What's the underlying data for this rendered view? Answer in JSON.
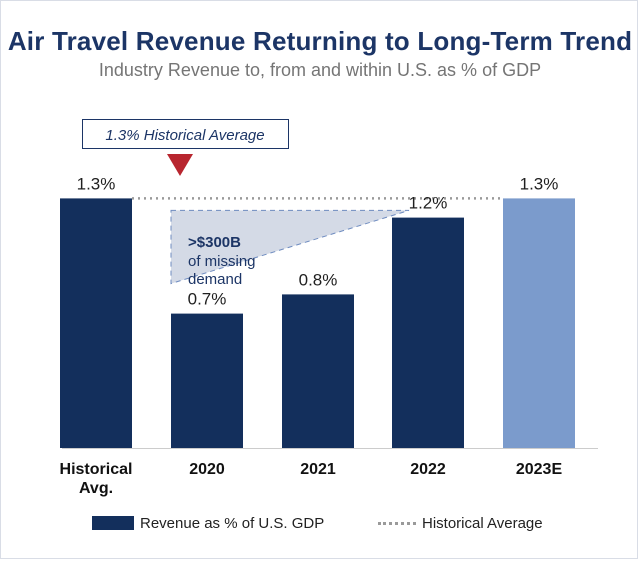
{
  "chart_data": {
    "type": "bar",
    "title": "Air Travel Revenue Returning to Long-Term Trend",
    "subtitle": "Industry Revenue to, from and within U.S. as % of GDP",
    "categories": [
      "Historical Avg.",
      "2020",
      "2021",
      "2022",
      "2023E"
    ],
    "category_lines": [
      [
        "Historical",
        "Avg."
      ],
      [
        "2020"
      ],
      [
        "2021"
      ],
      [
        "2022"
      ],
      [
        "2023E"
      ]
    ],
    "values": [
      1.3,
      0.7,
      0.8,
      1.2,
      1.3
    ],
    "value_labels": [
      "1.3%",
      "0.7%",
      "0.8%",
      "1.2%",
      "1.3%"
    ],
    "estimated": [
      false,
      false,
      false,
      false,
      true
    ],
    "reference_line": {
      "value": 1.3,
      "label": "Historical Average"
    },
    "callout": "1.3% Historical Average",
    "annotation": {
      "bold": ">$300B",
      "rest": [
        "of missing",
        "demand"
      ]
    },
    "ylim": [
      0,
      1.3
    ],
    "xlabel": "",
    "ylabel": "",
    "legend": {
      "bar": "Revenue as % of U.S. GDP",
      "line": "Historical Average"
    },
    "colors": {
      "bar": "#132f5c",
      "estimate": "#7b9bcc",
      "reference": "#9a9a9a",
      "marker": "#b8262f",
      "gap_fill": "#d4dae6",
      "gap_stroke": "#6f8cc0"
    }
  }
}
